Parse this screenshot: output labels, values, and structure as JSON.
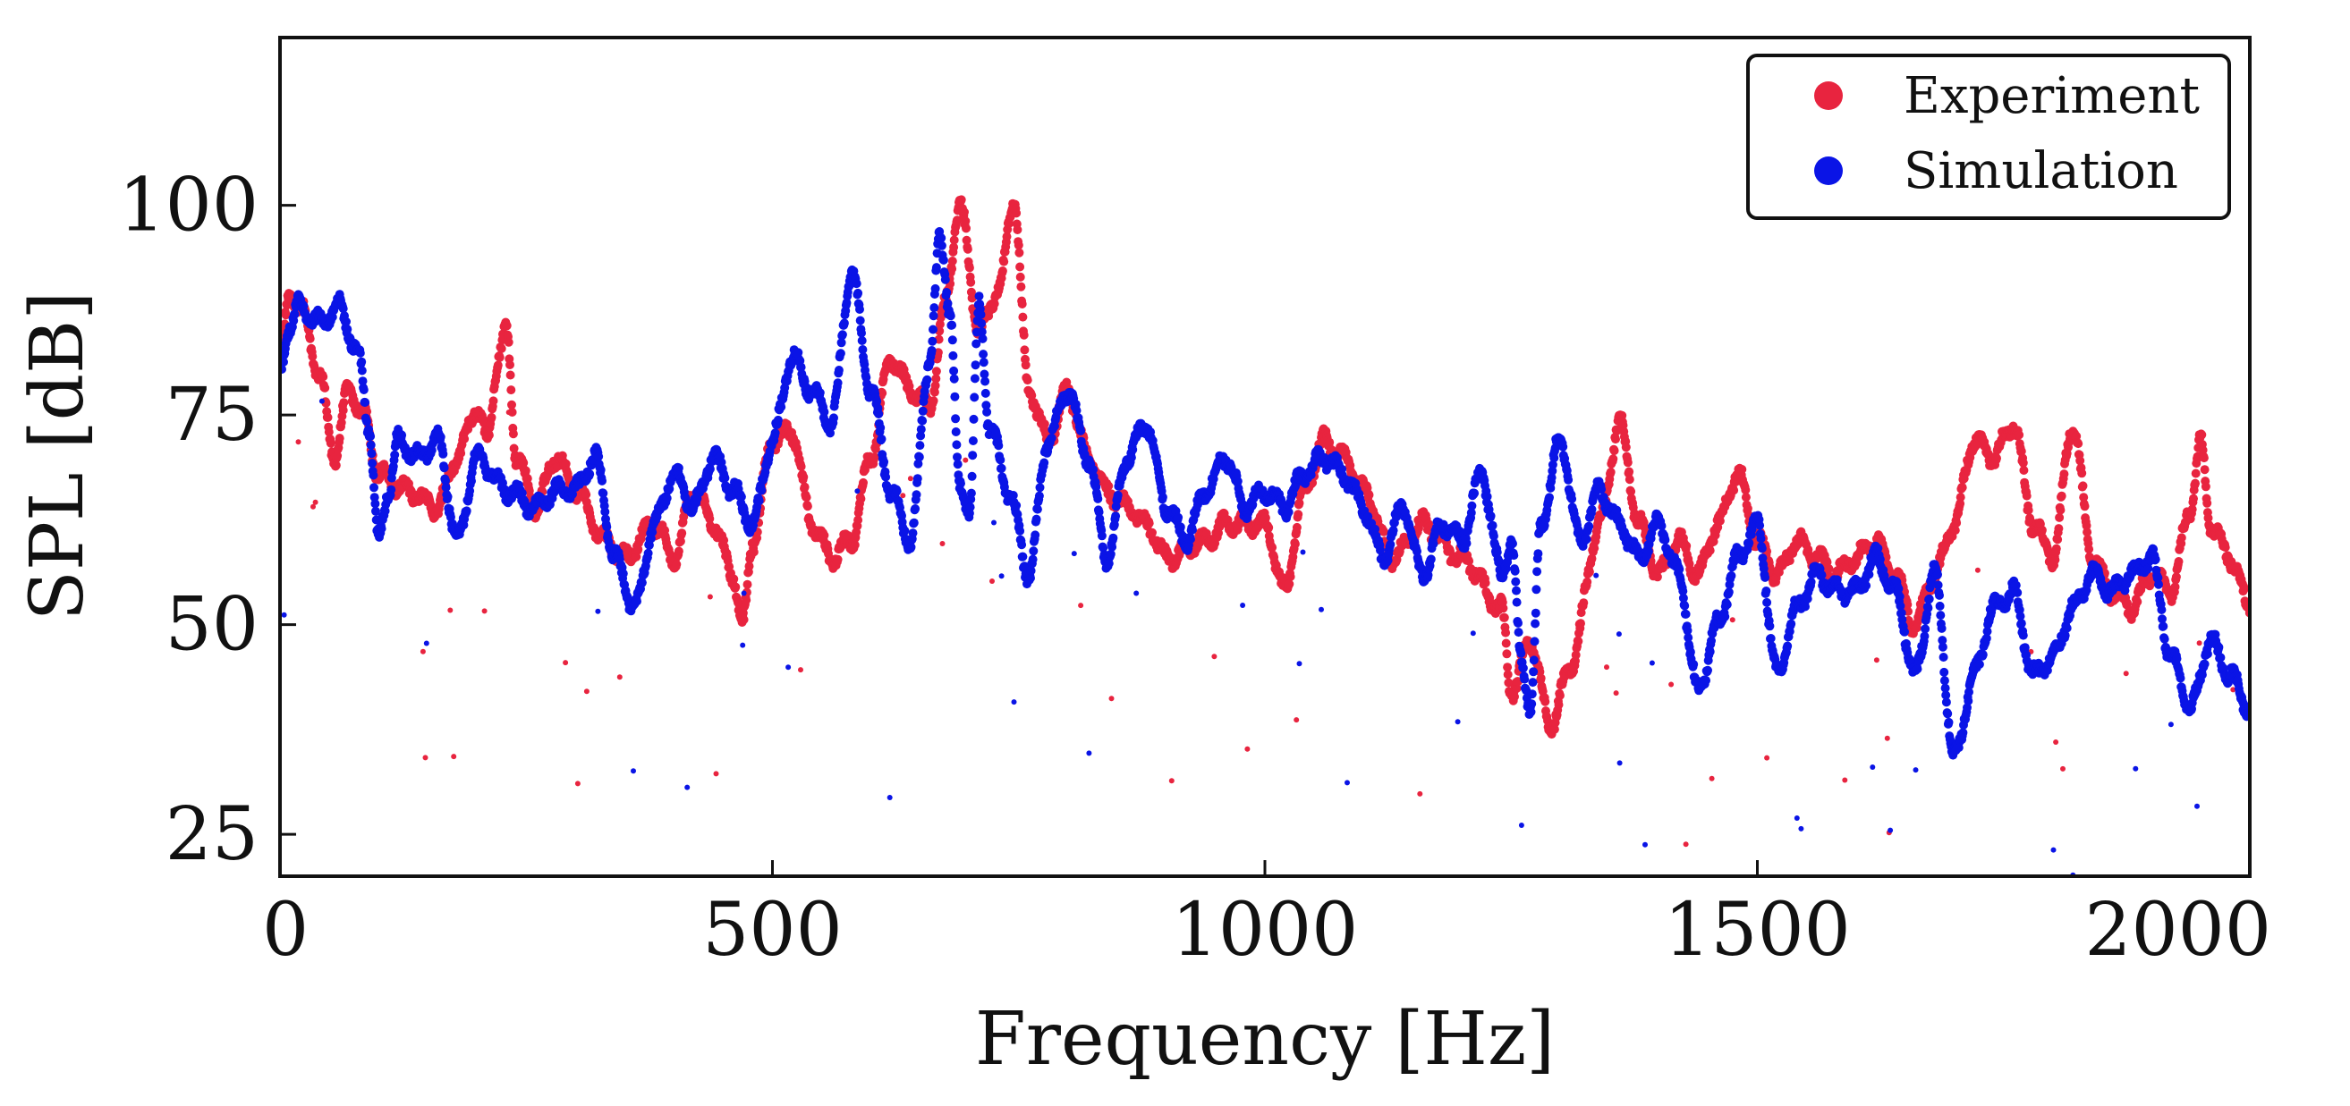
{
  "chart_data": {
    "type": "scatter",
    "title": "",
    "xlabel": "Frequency [Hz]",
    "ylabel": "SPL [dB]",
    "xlim": [
      0,
      2000
    ],
    "ylim": [
      20,
      120
    ],
    "xticks": [
      0,
      500,
      1000,
      1500,
      2000
    ],
    "yticks": [
      25,
      50,
      75,
      100
    ],
    "legend_position": "top-right",
    "series": [
      {
        "name": "Experiment",
        "color": "#e8243f",
        "anchors": [
          [
            0,
            82
          ],
          [
            10,
            89
          ],
          [
            20,
            88
          ],
          [
            40,
            80
          ],
          [
            55,
            70
          ],
          [
            70,
            78
          ],
          [
            85,
            75
          ],
          [
            100,
            68
          ],
          [
            130,
            66
          ],
          [
            160,
            64
          ],
          [
            180,
            70
          ],
          [
            200,
            76
          ],
          [
            210,
            72
          ],
          [
            222,
            82
          ],
          [
            230,
            85
          ],
          [
            240,
            70
          ],
          [
            260,
            64
          ],
          [
            280,
            70
          ],
          [
            300,
            66
          ],
          [
            330,
            60
          ],
          [
            350,
            58
          ],
          [
            380,
            62
          ],
          [
            400,
            58
          ],
          [
            420,
            66
          ],
          [
            440,
            62
          ],
          [
            460,
            56
          ],
          [
            470,
            50
          ],
          [
            480,
            60
          ],
          [
            500,
            72
          ],
          [
            520,
            73
          ],
          [
            540,
            62
          ],
          [
            560,
            58
          ],
          [
            580,
            60
          ],
          [
            600,
            70
          ],
          [
            620,
            82
          ],
          [
            640,
            78
          ],
          [
            660,
            76
          ],
          [
            675,
            88
          ],
          [
            690,
            100
          ],
          [
            710,
            85
          ],
          [
            730,
            90
          ],
          [
            745,
            101
          ],
          [
            760,
            78
          ],
          [
            780,
            72
          ],
          [
            800,
            78
          ],
          [
            820,
            70
          ],
          [
            840,
            66
          ],
          [
            860,
            64
          ],
          [
            880,
            62
          ],
          [
            900,
            58
          ],
          [
            940,
            60
          ],
          [
            960,
            62
          ],
          [
            1000,
            62
          ],
          [
            1020,
            54
          ],
          [
            1040,
            66
          ],
          [
            1060,
            72
          ],
          [
            1080,
            70
          ],
          [
            1100,
            66
          ],
          [
            1130,
            58
          ],
          [
            1160,
            62
          ],
          [
            1200,
            58
          ],
          [
            1240,
            52
          ],
          [
            1250,
            42
          ],
          [
            1270,
            48
          ],
          [
            1290,
            38
          ],
          [
            1310,
            45
          ],
          [
            1340,
            62
          ],
          [
            1360,
            74
          ],
          [
            1380,
            62
          ],
          [
            1400,
            56
          ],
          [
            1420,
            60
          ],
          [
            1440,
            56
          ],
          [
            1460,
            62
          ],
          [
            1480,
            68
          ],
          [
            1500,
            60
          ],
          [
            1520,
            56
          ],
          [
            1540,
            60
          ],
          [
            1560,
            58
          ],
          [
            1580,
            56
          ],
          [
            1600,
            58
          ],
          [
            1620,
            60
          ],
          [
            1640,
            56
          ],
          [
            1660,
            50
          ],
          [
            1680,
            56
          ],
          [
            1700,
            62
          ],
          [
            1720,
            72
          ],
          [
            1740,
            70
          ],
          [
            1760,
            74
          ],
          [
            1780,
            62
          ],
          [
            1800,
            58
          ],
          [
            1820,
            74
          ],
          [
            1840,
            58
          ],
          [
            1860,
            54
          ],
          [
            1880,
            52
          ],
          [
            1900,
            56
          ],
          [
            1920,
            54
          ],
          [
            1940,
            64
          ],
          [
            1950,
            72
          ],
          [
            1960,
            62
          ],
          [
            1980,
            58
          ],
          [
            2000,
            52
          ]
        ]
      },
      {
        "name": "Simulation",
        "color": "#0a14e6",
        "anchors": [
          [
            0,
            80
          ],
          [
            10,
            86
          ],
          [
            20,
            88
          ],
          [
            40,
            86
          ],
          [
            60,
            88
          ],
          [
            80,
            82
          ],
          [
            90,
            74
          ],
          [
            100,
            60
          ],
          [
            110,
            66
          ],
          [
            120,
            72
          ],
          [
            140,
            70
          ],
          [
            160,
            72
          ],
          [
            180,
            60
          ],
          [
            200,
            70
          ],
          [
            230,
            66
          ],
          [
            260,
            64
          ],
          [
            280,
            66
          ],
          [
            300,
            66
          ],
          [
            320,
            70
          ],
          [
            340,
            58
          ],
          [
            360,
            52
          ],
          [
            380,
            62
          ],
          [
            400,
            68
          ],
          [
            420,
            64
          ],
          [
            440,
            70
          ],
          [
            460,
            66
          ],
          [
            480,
            62
          ],
          [
            500,
            72
          ],
          [
            520,
            82
          ],
          [
            540,
            78
          ],
          [
            560,
            74
          ],
          [
            580,
            92
          ],
          [
            600,
            78
          ],
          [
            620,
            66
          ],
          [
            640,
            60
          ],
          [
            660,
            82
          ],
          [
            670,
            96
          ],
          [
            680,
            88
          ],
          [
            690,
            66
          ],
          [
            700,
            64
          ],
          [
            710,
            88
          ],
          [
            720,
            74
          ],
          [
            740,
            66
          ],
          [
            760,
            56
          ],
          [
            780,
            72
          ],
          [
            800,
            78
          ],
          [
            820,
            70
          ],
          [
            840,
            58
          ],
          [
            860,
            70
          ],
          [
            880,
            74
          ],
          [
            900,
            64
          ],
          [
            920,
            60
          ],
          [
            940,
            66
          ],
          [
            960,
            70
          ],
          [
            980,
            64
          ],
          [
            1000,
            66
          ],
          [
            1020,
            64
          ],
          [
            1040,
            68
          ],
          [
            1060,
            70
          ],
          [
            1080,
            68
          ],
          [
            1100,
            64
          ],
          [
            1120,
            58
          ],
          [
            1140,
            64
          ],
          [
            1160,
            56
          ],
          [
            1180,
            62
          ],
          [
            1200,
            60
          ],
          [
            1220,
            68
          ],
          [
            1240,
            56
          ],
          [
            1250,
            60
          ],
          [
            1260,
            46
          ],
          [
            1270,
            40
          ],
          [
            1280,
            62
          ],
          [
            1300,
            72
          ],
          [
            1320,
            60
          ],
          [
            1340,
            66
          ],
          [
            1360,
            62
          ],
          [
            1380,
            58
          ],
          [
            1400,
            62
          ],
          [
            1420,
            56
          ],
          [
            1440,
            42
          ],
          [
            1460,
            50
          ],
          [
            1480,
            58
          ],
          [
            1500,
            62
          ],
          [
            1520,
            44
          ],
          [
            1540,
            52
          ],
          [
            1560,
            56
          ],
          [
            1580,
            54
          ],
          [
            1600,
            54
          ],
          [
            1620,
            58
          ],
          [
            1640,
            54
          ],
          [
            1660,
            44
          ],
          [
            1680,
            56
          ],
          [
            1700,
            34
          ],
          [
            1720,
            44
          ],
          [
            1740,
            52
          ],
          [
            1760,
            54
          ],
          [
            1780,
            44
          ],
          [
            1800,
            46
          ],
          [
            1820,
            52
          ],
          [
            1840,
            56
          ],
          [
            1860,
            54
          ],
          [
            1880,
            56
          ],
          [
            1900,
            58
          ],
          [
            1920,
            46
          ],
          [
            1940,
            40
          ],
          [
            1960,
            48
          ],
          [
            1980,
            44
          ],
          [
            2000,
            40
          ]
        ]
      }
    ]
  }
}
